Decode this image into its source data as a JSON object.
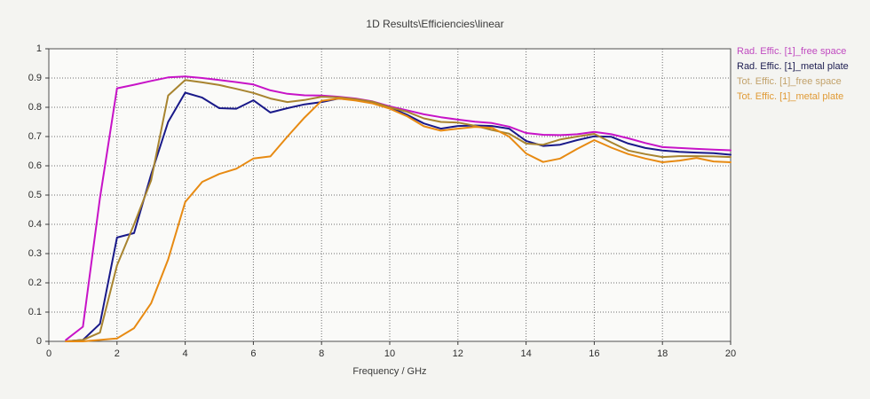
{
  "chart_data": {
    "type": "line",
    "title": "1D Results\\Efficiencies\\linear",
    "xlabel": "Frequency / GHz",
    "ylabel": "",
    "xlim": [
      0,
      20
    ],
    "ylim": [
      0,
      1
    ],
    "x_ticks": [
      0,
      2,
      4,
      6,
      8,
      10,
      12,
      14,
      16,
      18,
      20
    ],
    "y_ticks": [
      "0",
      "0.1",
      "0.2",
      "0.3",
      "0.4",
      "0.5",
      "0.6",
      "0.7",
      "0.8",
      "0.9",
      "1"
    ],
    "grid": "dotted",
    "legend_position": "top-right-outside",
    "x": [
      0.5,
      1,
      1.5,
      2,
      2.5,
      3,
      3.5,
      4,
      4.5,
      5,
      5.5,
      6,
      6.5,
      7,
      7.5,
      8,
      8.5,
      9,
      9.5,
      10,
      10.5,
      11,
      11.5,
      12,
      12.5,
      13,
      13.5,
      14,
      14.5,
      15,
      15.5,
      16,
      16.5,
      17,
      17.5,
      18,
      18.5,
      19,
      19.5,
      20
    ],
    "series": [
      {
        "name": "Rad. Effic. [1]_free space",
        "color": "#c713c7",
        "legend_color": "#c04ac0",
        "values": [
          0.005,
          0.05,
          0.49,
          0.865,
          0.877,
          0.89,
          0.902,
          0.905,
          0.9,
          0.893,
          0.886,
          0.878,
          0.858,
          0.846,
          0.841,
          0.84,
          0.836,
          0.83,
          0.82,
          0.803,
          0.79,
          0.776,
          0.766,
          0.758,
          0.751,
          0.746,
          0.734,
          0.712,
          0.706,
          0.705,
          0.708,
          0.716,
          0.708,
          0.694,
          0.678,
          0.664,
          0.661,
          0.658,
          0.655,
          0.653
        ]
      },
      {
        "name": "Rad. Effic. [1]_metal plate",
        "color": "#191989",
        "legend_color": "#1c1c50",
        "values": [
          0.0,
          0.005,
          0.06,
          0.355,
          0.37,
          0.57,
          0.75,
          0.85,
          0.833,
          0.797,
          0.795,
          0.824,
          0.782,
          0.797,
          0.81,
          0.818,
          0.83,
          0.825,
          0.818,
          0.8,
          0.775,
          0.745,
          0.727,
          0.736,
          0.738,
          0.736,
          0.727,
          0.685,
          0.668,
          0.672,
          0.688,
          0.701,
          0.699,
          0.676,
          0.661,
          0.652,
          0.648,
          0.645,
          0.643,
          0.638
        ]
      },
      {
        "name": "Tot. Effic. [1]_free space",
        "color": "#a8842f",
        "legend_color": "#c2a26b",
        "values": [
          0.0,
          0.005,
          0.03,
          0.26,
          0.4,
          0.55,
          0.84,
          0.893,
          0.885,
          0.876,
          0.863,
          0.849,
          0.83,
          0.818,
          0.825,
          0.836,
          0.834,
          0.828,
          0.819,
          0.8,
          0.785,
          0.762,
          0.75,
          0.748,
          0.737,
          0.722,
          0.71,
          0.676,
          0.672,
          0.69,
          0.7,
          0.709,
          0.68,
          0.652,
          0.64,
          0.63,
          0.633,
          0.633,
          0.632,
          0.63
        ]
      },
      {
        "name": "Tot. Effic. [1]_metal plate",
        "color": "#e78a12",
        "legend_color": "#e09a35",
        "values": [
          0.0,
          0.0,
          0.005,
          0.01,
          0.045,
          0.13,
          0.28,
          0.476,
          0.545,
          0.572,
          0.59,
          0.625,
          0.632,
          0.7,
          0.765,
          0.822,
          0.83,
          0.823,
          0.813,
          0.795,
          0.77,
          0.735,
          0.72,
          0.727,
          0.733,
          0.73,
          0.7,
          0.642,
          0.613,
          0.625,
          0.658,
          0.688,
          0.662,
          0.64,
          0.625,
          0.612,
          0.618,
          0.627,
          0.615,
          0.612
        ]
      }
    ]
  },
  "layout_colors": {
    "page_background": "#f4f4f1",
    "plot_background": "#fafaf8",
    "frame": "#4f4f4f",
    "grid": "#6e6e6e",
    "text": "#3a3a3a"
  }
}
